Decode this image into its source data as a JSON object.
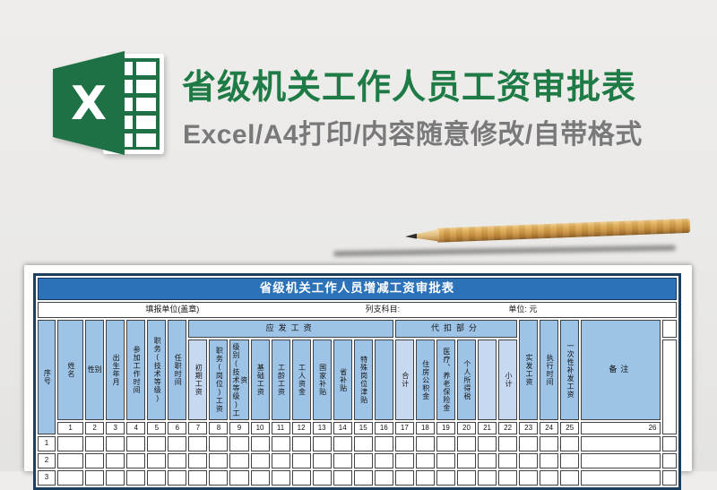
{
  "hero": {
    "title": "省级机关工作人员工资审批表",
    "subtitle": "Excel/A4打印/内容随意修改/自带格式",
    "icon": "excel-logo-icon",
    "icon_letter": "X"
  },
  "colors": {
    "excel_green": "#1e7145",
    "title_green": "#1e7b45",
    "subtitle_gray": "#797979",
    "table_title_blue": "#2b72b8",
    "header_blue": "#9dc3e6",
    "header_blue_light": "#c6d9f1",
    "outer_border_navy": "#1c3e5f"
  },
  "table": {
    "title": "省级机关工作人员增减工资审批表",
    "info": {
      "left": "填报单位(盖章)",
      "mid": "列支科目:",
      "right": "单位: 元"
    },
    "groups": {
      "yingfa": "应发工资",
      "daikou": "代扣部分"
    },
    "corner": {
      "label": "序号"
    },
    "columns": [
      {
        "label": "姓名",
        "num": "1"
      },
      {
        "label": "性别",
        "num": "2",
        "horizontal": true
      },
      {
        "label": "出生年月",
        "num": "3"
      },
      {
        "label": "参加工作时间",
        "num": "4"
      },
      {
        "label": "职务(技术等级)",
        "num": "5"
      },
      {
        "label": "任职时间",
        "num": "6"
      },
      {
        "label": "初期工资",
        "num": "7",
        "group": "yingfa",
        "light": true
      },
      {
        "label": "职务(岗位)工资",
        "num": "8",
        "group": "yingfa"
      },
      {
        "label": "级别(技术等级)工资",
        "num": "9",
        "group": "yingfa"
      },
      {
        "label": "基础工资",
        "num": "10",
        "group": "yingfa"
      },
      {
        "label": "工龄工资",
        "num": "11",
        "group": "yingfa"
      },
      {
        "label": "工人资金",
        "num": "12",
        "group": "yingfa"
      },
      {
        "label": "国家补贴",
        "num": "13",
        "group": "yingfa"
      },
      {
        "label": "省补贴",
        "num": "14",
        "group": "yingfa"
      },
      {
        "label": "特殊岗位津贴",
        "num": "15",
        "group": "yingfa"
      },
      {
        "label": "",
        "num": "16",
        "group": "yingfa"
      },
      {
        "label": "合计",
        "num": "17",
        "group": "daikou",
        "light": true
      },
      {
        "label": "住房公积金",
        "num": "18",
        "group": "daikou"
      },
      {
        "label": "医疗、养老保险金",
        "num": "19",
        "group": "daikou"
      },
      {
        "label": "个人所得税",
        "num": "20",
        "group": "daikou"
      },
      {
        "label": "",
        "num": "21",
        "group": "daikou",
        "light": true
      },
      {
        "label": "小计",
        "num": "22",
        "group": "daikou",
        "light": true
      },
      {
        "label": "实发工资",
        "num": "23"
      },
      {
        "label": "执行时间",
        "num": "24"
      },
      {
        "label": "一次性补发工资",
        "num": "25"
      },
      {
        "label": "备注",
        "num": "26",
        "wide": true,
        "horizontal": true,
        "numAlign": "right"
      }
    ],
    "rows": [
      {
        "no": "1"
      },
      {
        "no": "2"
      },
      {
        "no": "3"
      }
    ]
  }
}
